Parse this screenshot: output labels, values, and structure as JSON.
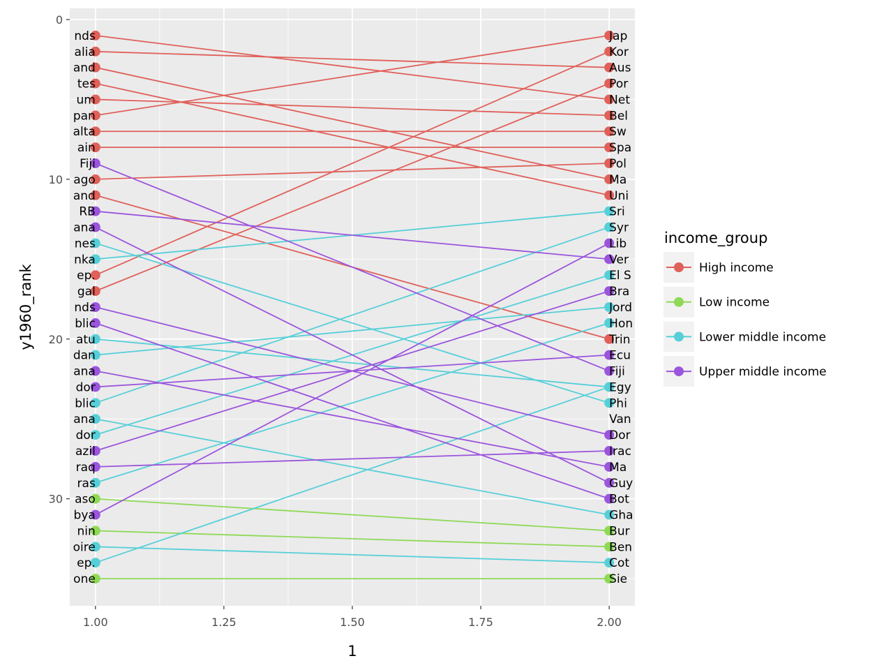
{
  "chart_data": {
    "type": "line",
    "title": "",
    "xlabel": "1",
    "ylabel": "y1960_rank",
    "xlim": [
      0.95,
      2.05
    ],
    "ylim": [
      36.7,
      -0.7
    ],
    "y_reversed": true,
    "xticks": [
      1.0,
      1.25,
      1.5,
      1.75,
      2.0
    ],
    "xtick_labels": [
      "1.00",
      "1.25",
      "1.50",
      "1.75",
      "2.00"
    ],
    "yticks": [
      0,
      10,
      20,
      30
    ],
    "ytick_labels": [
      "0",
      "10",
      "20",
      "30"
    ],
    "grid": true,
    "legend": {
      "title": "income_group",
      "placement": "right",
      "entries": [
        {
          "name": "High income",
          "color": "#E0605A"
        },
        {
          "name": "Low income",
          "color": "#8FD957"
        },
        {
          "name": "Lower middle income",
          "color": "#56CFD8"
        },
        {
          "name": "Upper middle income",
          "color": "#9B55DC"
        }
      ]
    },
    "left_labels": [
      "nds",
      "alia",
      "and",
      "tes",
      "um",
      "pan",
      "alta",
      "ain",
      "Fiji",
      "ago",
      "and",
      "RB",
      "ana",
      "nes",
      "nka",
      "ep.",
      "gal",
      "nds",
      "blic",
      "atu",
      "dan",
      "ana",
      "dor",
      "blic",
      "ana",
      "dor",
      "azil",
      "raq",
      "ras",
      "aso",
      "bya",
      "nin",
      "oire",
      "ep.",
      "one"
    ],
    "right_labels": [
      "Jap",
      "Kor",
      "Aus",
      "Por",
      "Net",
      "Bel",
      "Sw",
      "Spa",
      "Pol",
      "Ma",
      "Uni",
      "Sri",
      "Syr",
      "Lib",
      "Ver",
      "El S",
      "Bra",
      "Jord",
      "Hon",
      "Trin",
      "Ecu",
      "Fiji",
      "Egy",
      "Phi",
      "Van",
      "Dor",
      "Irac",
      "Ma",
      "Guy",
      "Bot",
      "Gha",
      "Bur",
      "Ben",
      "Cot",
      "Sie"
    ],
    "series": [
      {
        "name": "High income",
        "color": "#E0605A",
        "segments": [
          [
            1,
            5
          ],
          [
            2,
            3
          ],
          [
            3,
            10
          ],
          [
            4,
            11
          ],
          [
            5,
            6
          ],
          [
            6,
            1
          ],
          [
            7,
            7
          ],
          [
            8,
            8
          ],
          [
            10,
            9
          ],
          [
            11,
            20
          ],
          [
            16,
            2
          ],
          [
            17,
            4
          ]
        ]
      },
      {
        "name": "Low income",
        "color": "#8FD957",
        "segments": [
          [
            30,
            32
          ],
          [
            32,
            33
          ],
          [
            35,
            35
          ]
        ]
      },
      {
        "name": "Lower middle income",
        "color": "#56CFD8",
        "segments": [
          [
            14,
            24
          ],
          [
            15,
            12
          ],
          [
            20,
            23
          ],
          [
            21,
            18
          ],
          [
            24,
            13
          ],
          [
            25,
            31
          ],
          [
            26,
            16
          ],
          [
            29,
            19
          ],
          [
            33,
            34
          ],
          [
            34,
            23
          ]
        ]
      },
      {
        "name": "Upper middle income",
        "color": "#9B55DC",
        "segments": [
          [
            9,
            22
          ],
          [
            12,
            15
          ],
          [
            13,
            29
          ],
          [
            18,
            26
          ],
          [
            19,
            30
          ],
          [
            22,
            28
          ],
          [
            23,
            21
          ],
          [
            27,
            17
          ],
          [
            28,
            27
          ],
          [
            31,
            14
          ]
        ]
      }
    ]
  }
}
